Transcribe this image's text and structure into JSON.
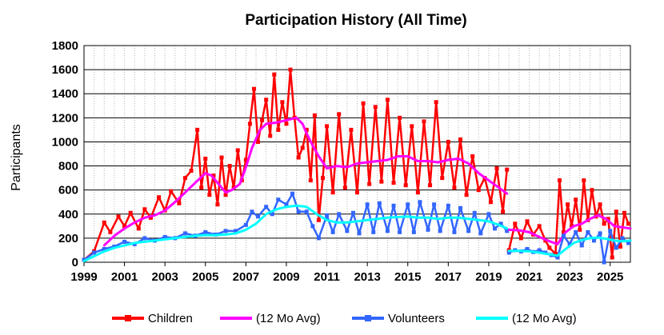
{
  "chart_data": {
    "type": "line",
    "title": "Participation History (All Time)",
    "xlabel": "",
    "ylabel": "Participants",
    "xlim": [
      1999,
      2026
    ],
    "ylim": [
      0,
      1800
    ],
    "x_ticks": [
      "1999",
      "2001",
      "2003",
      "2005",
      "2007",
      "2009",
      "2011",
      "2013",
      "2015",
      "2017",
      "2019",
      "2021",
      "2023",
      "2025"
    ],
    "y_ticks": [
      "0",
      "200",
      "400",
      "600",
      "800",
      "1000",
      "1200",
      "1400",
      "1600",
      "1800"
    ],
    "grid": true,
    "legend_position": "bottom",
    "series": [
      {
        "name": "Children",
        "color": "#ff0000",
        "marker": "square",
        "x": [
          1999.0,
          1999.5,
          2000.0,
          2000.3,
          2000.7,
          2001.0,
          2001.3,
          2001.7,
          2002.0,
          2002.3,
          2002.7,
          2003.0,
          2003.3,
          2003.7,
          2004.0,
          2004.3,
          2004.6,
          2004.8,
          2005.0,
          2005.2,
          2005.4,
          2005.6,
          2005.8,
          2006.0,
          2006.2,
          2006.4,
          2006.6,
          2006.8,
          2007.0,
          2007.2,
          2007.4,
          2007.6,
          2007.8,
          2008.0,
          2008.2,
          2008.4,
          2008.6,
          2008.8,
          2009.0,
          2009.2,
          2009.4,
          2009.6,
          2009.8,
          2010.0,
          2010.2,
          2010.4,
          2010.6,
          2010.8,
          2011.0,
          2011.3,
          2011.6,
          2011.9,
          2012.2,
          2012.5,
          2012.8,
          2013.1,
          2013.4,
          2013.7,
          2014.0,
          2014.3,
          2014.6,
          2014.9,
          2015.2,
          2015.5,
          2015.8,
          2016.1,
          2016.4,
          2016.7,
          2017.0,
          2017.3,
          2017.6,
          2017.9,
          2018.2,
          2018.5,
          2018.8,
          2019.1,
          2019.4,
          2019.7,
          2019.9
        ],
        "values": [
          20,
          90,
          330,
          250,
          380,
          300,
          410,
          280,
          440,
          370,
          540,
          430,
          590,
          490,
          700,
          760,
          1100,
          620,
          860,
          560,
          720,
          480,
          870,
          560,
          800,
          620,
          930,
          680,
          850,
          1150,
          1440,
          1000,
          1180,
          1350,
          1050,
          1560,
          1100,
          1330,
          1150,
          1600,
          1200,
          870,
          950,
          1100,
          680,
          1220,
          350,
          700,
          1130,
          580,
          1230,
          620,
          1100,
          580,
          1320,
          650,
          1290,
          670,
          1350,
          660,
          1200,
          640,
          1130,
          580,
          1170,
          640,
          1330,
          700,
          1000,
          620,
          1020,
          560,
          880,
          600,
          700,
          500,
          780,
          420,
          770
        ]
      },
      {
        "name": "(12 Mo Avg)",
        "color": "#ff00ff",
        "x": [
          2000.0,
          2000.5,
          2001.0,
          2001.5,
          2002.0,
          2002.5,
          2003.0,
          2003.5,
          2004.0,
          2004.5,
          2005.0,
          2005.3,
          2005.7,
          2006.0,
          2006.3,
          2006.7,
          2007.0,
          2007.3,
          2007.7,
          2008.0,
          2008.5,
          2009.0,
          2009.5,
          2009.8,
          2010.0,
          2010.3,
          2010.6,
          2011.0,
          2011.5,
          2012.0,
          2012.5,
          2013.0,
          2013.5,
          2014.0,
          2014.5,
          2015.0,
          2015.5,
          2016.0,
          2016.5,
          2017.0,
          2017.5,
          2018.0,
          2018.5,
          2019.0,
          2019.5,
          2019.9
        ],
        "values": [
          140,
          220,
          280,
          330,
          370,
          390,
          430,
          500,
          580,
          660,
          740,
          720,
          640,
          580,
          600,
          650,
          790,
          950,
          1100,
          1150,
          1160,
          1180,
          1200,
          1150,
          1070,
          970,
          880,
          780,
          800,
          790,
          820,
          830,
          840,
          850,
          880,
          880,
          840,
          840,
          830,
          850,
          860,
          820,
          740,
          680,
          620,
          570
        ]
      },
      {
        "name": "Volunteers",
        "color": "#3366ff",
        "marker": "square",
        "x": [
          1999.0,
          1999.5,
          2000.0,
          2000.5,
          2001.0,
          2001.5,
          2002.0,
          2002.5,
          2003.0,
          2003.5,
          2004.0,
          2004.5,
          2005.0,
          2005.5,
          2006.0,
          2006.5,
          2007.0,
          2007.3,
          2007.6,
          2008.0,
          2008.3,
          2008.6,
          2009.0,
          2009.3,
          2009.6,
          2010.0,
          2010.3,
          2010.6,
          2011.0,
          2011.3,
          2011.6,
          2012.0,
          2012.3,
          2012.6,
          2013.0,
          2013.3,
          2013.6,
          2014.0,
          2014.3,
          2014.6,
          2015.0,
          2015.3,
          2015.6,
          2016.0,
          2016.3,
          2016.6,
          2017.0,
          2017.3,
          2017.6,
          2018.0,
          2018.3,
          2018.6,
          2019.0,
          2019.3,
          2019.6,
          2019.9
        ],
        "values": [
          20,
          80,
          110,
          130,
          170,
          150,
          200,
          180,
          210,
          200,
          240,
          220,
          250,
          230,
          260,
          260,
          310,
          420,
          380,
          460,
          400,
          520,
          480,
          570,
          420,
          420,
          300,
          200,
          390,
          250,
          400,
          260,
          410,
          240,
          480,
          250,
          490,
          260,
          470,
          250,
          480,
          250,
          500,
          270,
          480,
          260,
          470,
          250,
          450,
          260,
          410,
          240,
          400,
          280,
          320,
          260
        ]
      },
      {
        "name": "(12 Mo Avg)",
        "color": "#00ffff",
        "x": [
          1999.0,
          1999.5,
          2000.0,
          2000.5,
          2001.0,
          2001.5,
          2002.0,
          2002.5,
          2003.0,
          2003.5,
          2004.0,
          2004.5,
          2005.0,
          2005.5,
          2006.0,
          2006.5,
          2007.0,
          2007.5,
          2008.0,
          2008.5,
          2009.0,
          2009.5,
          2010.0,
          2010.5,
          2011.0,
          2011.5,
          2012.0,
          2012.5,
          2013.0,
          2013.5,
          2014.0,
          2014.5,
          2015.0,
          2015.5,
          2016.0,
          2016.5,
          2017.0,
          2017.5,
          2018.0,
          2018.5,
          2019.0,
          2019.5,
          2019.9
        ],
        "values": [
          10,
          50,
          90,
          120,
          140,
          160,
          170,
          180,
          190,
          200,
          210,
          220,
          225,
          225,
          230,
          240,
          270,
          320,
          400,
          440,
          460,
          470,
          460,
          400,
          350,
          330,
          330,
          340,
          350,
          360,
          370,
          375,
          380,
          370,
          370,
          360,
          370,
          370,
          360,
          350,
          340,
          310,
          280
        ]
      },
      {
        "name": "Children",
        "color": "#ff0000",
        "marker": "square",
        "x": [
          2020.0,
          2020.3,
          2020.6,
          2020.9,
          2021.2,
          2021.5,
          2021.8,
          2022.0,
          2022.3,
          2022.5,
          2022.7,
          2022.9,
          2023.1,
          2023.3,
          2023.5,
          2023.7,
          2023.9,
          2024.1,
          2024.3,
          2024.5,
          2024.7,
          2024.9,
          2025.1,
          2025.3,
          2025.5,
          2025.7,
          2025.9
        ],
        "values": [
          100,
          320,
          200,
          340,
          230,
          300,
          180,
          120,
          70,
          680,
          250,
          480,
          300,
          520,
          270,
          680,
          350,
          600,
          380,
          480,
          320,
          360,
          40,
          420,
          130,
          410,
          320
        ]
      },
      {
        "name": "(12 Mo Avg)",
        "color": "#ff00ff",
        "x": [
          2020.0,
          2020.5,
          2021.0,
          2021.5,
          2022.0,
          2022.4,
          2022.8,
          2023.2,
          2023.6,
          2024.0,
          2024.4,
          2024.8,
          2025.2,
          2025.6,
          2026.0
        ],
        "values": [
          270,
          265,
          250,
          210,
          175,
          150,
          250,
          300,
          320,
          360,
          390,
          360,
          300,
          290,
          280
        ]
      },
      {
        "name": "Volunteers",
        "color": "#3366ff",
        "marker": "square",
        "x": [
          2020.0,
          2020.3,
          2020.6,
          2020.9,
          2021.2,
          2021.5,
          2021.8,
          2022.1,
          2022.4,
          2022.7,
          2023.0,
          2023.3,
          2023.6,
          2023.9,
          2024.2,
          2024.5,
          2024.7,
          2025.0,
          2025.3,
          2025.6,
          2025.9
        ],
        "values": [
          80,
          100,
          90,
          110,
          85,
          100,
          80,
          60,
          40,
          220,
          150,
          250,
          140,
          250,
          180,
          240,
          0,
          260,
          120,
          200,
          160
        ]
      },
      {
        "name": "(12 Mo Avg)",
        "color": "#00ffff",
        "x": [
          2020.0,
          2020.5,
          2021.0,
          2021.5,
          2022.0,
          2022.4,
          2022.8,
          2023.2,
          2023.6,
          2024.0,
          2024.4,
          2024.8,
          2025.2,
          2025.6,
          2026.0
        ],
        "values": [
          95,
          95,
          90,
          80,
          65,
          55,
          110,
          160,
          185,
          200,
          205,
          195,
          180,
          175,
          180
        ]
      }
    ],
    "legend": [
      {
        "label": "Children",
        "color": "#ff0000",
        "marker": true
      },
      {
        "label": "(12 Mo Avg)",
        "color": "#ff00ff",
        "marker": false
      },
      {
        "label": "Volunteers",
        "color": "#3366ff",
        "marker": true
      },
      {
        "label": "(12 Mo Avg)",
        "color": "#00ffff",
        "marker": false
      }
    ]
  }
}
